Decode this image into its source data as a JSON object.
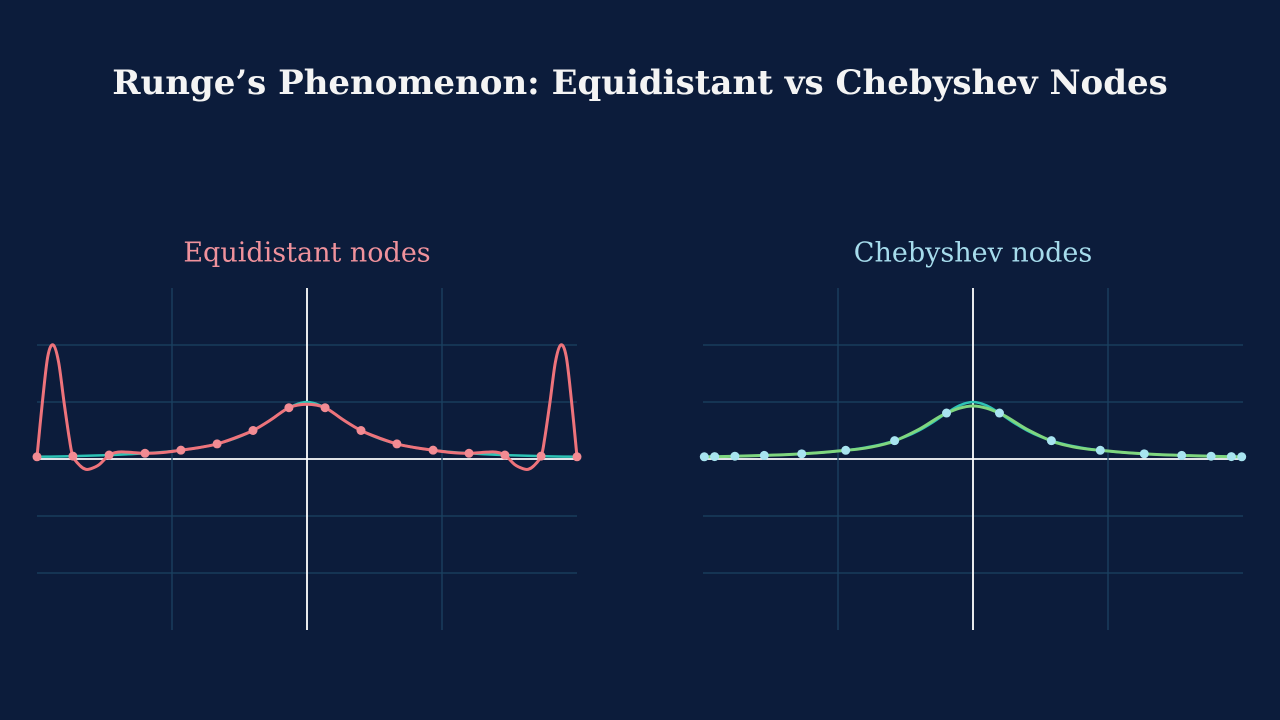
{
  "title": "Runge’s Phenomenon: Equidistant vs Chebyshev Nodes",
  "chart_data": [
    {
      "type": "line",
      "title": "Equidistant nodes",
      "title_color": "#f0929c",
      "xlim": [
        -1,
        1
      ],
      "ylim": [
        -3,
        3
      ],
      "xticks": [
        -0.5,
        0,
        0.5
      ],
      "yticks": [
        -2,
        -1,
        0,
        1,
        2
      ],
      "grid": true,
      "series": [
        {
          "type": "line",
          "color": "#2ec4b6",
          "width": 2.5,
          "x": [
            -1,
            -0.95,
            -0.9,
            -0.85,
            -0.8,
            -0.75,
            -0.7,
            -0.65,
            -0.6,
            -0.55,
            -0.5,
            -0.45,
            -0.4,
            -0.35,
            -0.3,
            -0.25,
            -0.2,
            -0.15,
            -0.1,
            -0.05,
            0,
            0.05,
            0.1,
            0.15,
            0.2,
            0.25,
            0.3,
            0.35,
            0.4,
            0.45,
            0.5,
            0.55,
            0.6,
            0.65,
            0.7,
            0.75,
            0.8,
            0.85,
            0.9,
            0.95,
            1
          ],
          "values": [
            0.0385,
            0.0424,
            0.0471,
            0.0525,
            0.0588,
            0.0664,
            0.0755,
            0.0865,
            0.1,
            0.117,
            0.138,
            0.165,
            0.2,
            0.246,
            0.308,
            0.39,
            0.5,
            0.64,
            0.8,
            0.941,
            1,
            0.941,
            0.8,
            0.64,
            0.5,
            0.39,
            0.308,
            0.246,
            0.2,
            0.165,
            0.138,
            0.117,
            0.1,
            0.0865,
            0.0755,
            0.0664,
            0.0588,
            0.0525,
            0.0471,
            0.0424,
            0.0385
          ]
        },
        {
          "type": "line",
          "color": "#ee737b",
          "width": 3,
          "x": [
            -1,
            -0.98,
            -0.96,
            -0.94,
            -0.92,
            -0.9,
            -0.88,
            -0.867,
            -0.84,
            -0.82,
            -0.8,
            -0.77,
            -0.733,
            -0.7,
            -0.667,
            -0.6,
            -0.533,
            -0.467,
            -0.4,
            -0.333,
            -0.267,
            -0.2,
            -0.133,
            -0.067,
            0,
            0.067,
            0.133,
            0.2,
            0.267,
            0.333,
            0.4,
            0.467,
            0.533,
            0.6,
            0.667,
            0.7,
            0.733,
            0.77,
            0.8,
            0.82,
            0.84,
            0.867,
            0.88,
            0.9,
            0.92,
            0.94,
            0.96,
            0.98,
            1
          ],
          "values": [
            0.0385,
            1.0,
            1.8,
            2.0,
            1.7,
            1.0,
            0.35,
            0.05,
            -0.12,
            -0.18,
            -0.17,
            -0.1,
            0.069,
            0.12,
            0.12,
            0.1,
            0.115,
            0.155,
            0.2,
            0.265,
            0.37,
            0.5,
            0.69,
            0.9,
            0.96,
            0.9,
            0.69,
            0.5,
            0.37,
            0.265,
            0.2,
            0.155,
            0.115,
            0.1,
            0.12,
            0.12,
            0.069,
            -0.1,
            -0.17,
            -0.18,
            -0.12,
            0.05,
            0.35,
            1.0,
            1.7,
            2.0,
            1.8,
            1.0,
            0.0385
          ]
        },
        {
          "type": "scatter",
          "color": "#f28b93",
          "radius": 4.5,
          "x": [
            -1,
            -0.867,
            -0.733,
            -0.6,
            -0.467,
            -0.333,
            -0.2,
            -0.067,
            0.067,
            0.2,
            0.333,
            0.467,
            0.6,
            0.733,
            0.867,
            1
          ],
          "values": [
            0.0385,
            0.0505,
            0.0693,
            0.1,
            0.155,
            0.265,
            0.5,
            0.9,
            0.9,
            0.5,
            0.265,
            0.155,
            0.1,
            0.0693,
            0.0505,
            0.0385
          ]
        }
      ]
    },
    {
      "type": "line",
      "title": "Chebyshev nodes",
      "title_color": "#a6dcec",
      "xlim": [
        -1,
        1
      ],
      "ylim": [
        -3,
        3
      ],
      "xticks": [
        -0.5,
        0,
        0.5
      ],
      "yticks": [
        -2,
        -1,
        0,
        1,
        2
      ],
      "grid": true,
      "series": [
        {
          "type": "line",
          "color": "#2ec4b6",
          "width": 2.5,
          "x": [
            -1,
            -0.95,
            -0.9,
            -0.85,
            -0.8,
            -0.75,
            -0.7,
            -0.65,
            -0.6,
            -0.55,
            -0.5,
            -0.45,
            -0.4,
            -0.35,
            -0.3,
            -0.25,
            -0.2,
            -0.15,
            -0.1,
            -0.05,
            0,
            0.05,
            0.1,
            0.15,
            0.2,
            0.25,
            0.3,
            0.35,
            0.4,
            0.45,
            0.5,
            0.55,
            0.6,
            0.65,
            0.7,
            0.75,
            0.8,
            0.85,
            0.9,
            0.95,
            1
          ],
          "values": [
            0.0385,
            0.0424,
            0.0471,
            0.0525,
            0.0588,
            0.0664,
            0.0755,
            0.0865,
            0.1,
            0.117,
            0.138,
            0.165,
            0.2,
            0.246,
            0.308,
            0.39,
            0.5,
            0.64,
            0.8,
            0.941,
            1,
            0.941,
            0.8,
            0.64,
            0.5,
            0.39,
            0.308,
            0.246,
            0.2,
            0.165,
            0.138,
            0.117,
            0.1,
            0.0865,
            0.0755,
            0.0664,
            0.0588,
            0.0525,
            0.0471,
            0.0424,
            0.0385
          ]
        },
        {
          "type": "line",
          "color": "#7fd67f",
          "width": 3,
          "x": [
            -1,
            -0.9,
            -0.8,
            -0.7,
            -0.6,
            -0.5,
            -0.4,
            -0.3,
            -0.2,
            -0.1,
            0,
            0.1,
            0.2,
            0.3,
            0.4,
            0.5,
            0.6,
            0.7,
            0.8,
            0.9,
            1
          ],
          "values": [
            0.038,
            0.045,
            0.06,
            0.075,
            0.1,
            0.14,
            0.19,
            0.3,
            0.52,
            0.8,
            0.93,
            0.8,
            0.52,
            0.3,
            0.19,
            0.14,
            0.1,
            0.075,
            0.06,
            0.045,
            0.038
          ]
        },
        {
          "type": "scatter",
          "color": "#a8e4f0",
          "radius": 4.5,
          "x": [
            -0.9952,
            -0.9569,
            -0.8819,
            -0.773,
            -0.6344,
            -0.4714,
            -0.2903,
            -0.098,
            0.098,
            0.2903,
            0.4714,
            0.6344,
            0.773,
            0.8819,
            0.9569,
            0.9952
          ],
          "values": [
            0.0388,
            0.0419,
            0.0489,
            0.0627,
            0.0904,
            0.1525,
            0.3219,
            0.8064,
            0.8064,
            0.3219,
            0.1525,
            0.0904,
            0.0627,
            0.0489,
            0.0419,
            0.0388
          ]
        }
      ]
    }
  ]
}
